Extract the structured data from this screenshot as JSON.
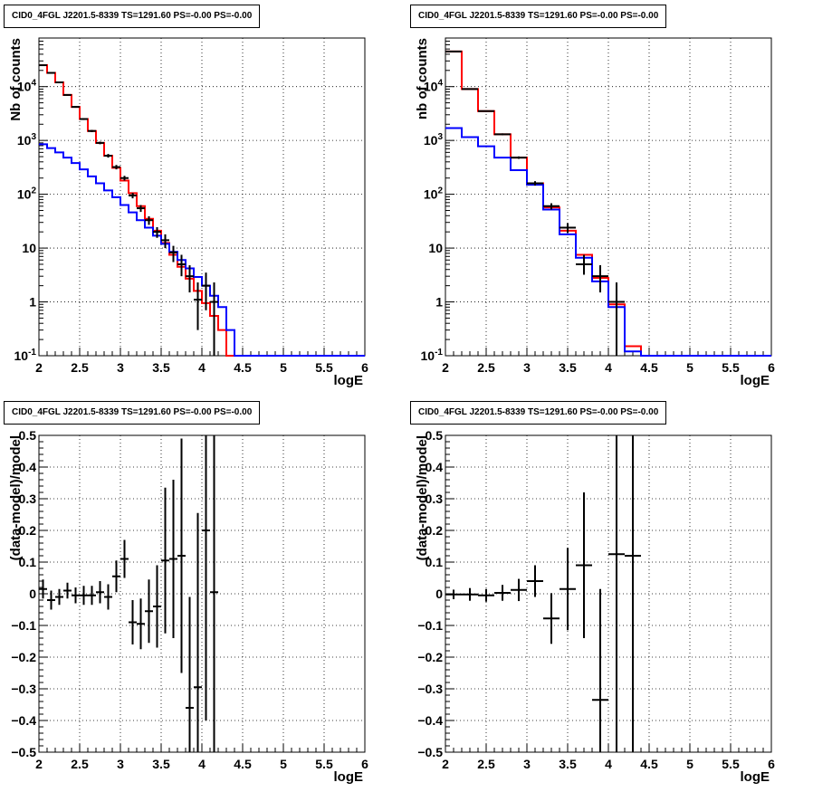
{
  "chart_data": [
    {
      "type": "line",
      "title": "CID0_4FGL J2201.5-8339 TS=1291.60 PS=-0.00 PS=-0.00",
      "xlabel": "logE",
      "ylabel": "Nb of counts",
      "xlim": [
        2,
        6
      ],
      "ylim": [
        0.1,
        80000
      ],
      "yscale": "log",
      "grid": true,
      "x_ticks": [
        "2",
        "2.5",
        "3",
        "3.5",
        "4",
        "4.5",
        "5",
        "5.5",
        "6"
      ],
      "y_ticks": [
        "10^-1",
        "1",
        "10",
        "10^2",
        "10^3",
        "10^4"
      ],
      "bin_edges": [
        2.0,
        2.1,
        2.2,
        2.3,
        2.4,
        2.5,
        2.6,
        2.7,
        2.8,
        2.9,
        3.0,
        3.1,
        3.2,
        3.3,
        3.4,
        3.5,
        3.6,
        3.7,
        3.8,
        3.9,
        4.0,
        4.1,
        4.2,
        4.3,
        4.4,
        4.5,
        4.6,
        4.7,
        4.8,
        4.9,
        5.0,
        5.1,
        5.2,
        5.3,
        5.4,
        5.5,
        5.6,
        5.7,
        5.8,
        5.9,
        6.0
      ],
      "series": [
        {
          "color": "#ff0000",
          "values": [
            25000,
            18000,
            12000,
            7000,
            4200,
            2500,
            1500,
            900,
            520,
            310,
            180,
            105,
            60,
            35,
            21,
            12.5,
            7.5,
            4.5,
            2.7,
            1.6,
            0.95,
            0.55,
            0.3,
            0.1,
            0.1,
            0.1,
            0.1,
            0.1,
            0.1,
            0.1,
            0.1,
            0.1,
            0.1,
            0.1,
            0.1,
            0.1,
            0.1,
            0.1,
            0.1,
            0.1
          ]
        },
        {
          "color": "#0000ff",
          "values": [
            850,
            720,
            600,
            480,
            380,
            290,
            215,
            160,
            118,
            88,
            63,
            46,
            33,
            24,
            17,
            12,
            8.5,
            6,
            4.2,
            2.9,
            2.0,
            1.3,
            0.8,
            0.3,
            0.1,
            0.1,
            0.1,
            0.1,
            0.1,
            0.1,
            0.1,
            0.1,
            0.1,
            0.1,
            0.1,
            0.1,
            0.1,
            0.1,
            0.1,
            0.1
          ]
        }
      ],
      "data_points": [
        {
          "x": 2.05,
          "y": 25000,
          "lo": 24500,
          "hi": 25500
        },
        {
          "x": 2.15,
          "y": 18000,
          "lo": 17600,
          "hi": 18400
        },
        {
          "x": 2.25,
          "y": 12000,
          "lo": 11700,
          "hi": 12300
        },
        {
          "x": 2.35,
          "y": 7000,
          "lo": 6800,
          "hi": 7200
        },
        {
          "x": 2.45,
          "y": 4200,
          "lo": 4050,
          "hi": 4350
        },
        {
          "x": 2.55,
          "y": 2500,
          "lo": 2400,
          "hi": 2600
        },
        {
          "x": 2.65,
          "y": 1500,
          "lo": 1430,
          "hi": 1570
        },
        {
          "x": 2.75,
          "y": 900,
          "lo": 850,
          "hi": 950
        },
        {
          "x": 2.85,
          "y": 520,
          "lo": 480,
          "hi": 560
        },
        {
          "x": 2.95,
          "y": 320,
          "lo": 290,
          "hi": 350
        },
        {
          "x": 3.05,
          "y": 200,
          "lo": 180,
          "hi": 220
        },
        {
          "x": 3.15,
          "y": 95,
          "lo": 84,
          "hi": 106
        },
        {
          "x": 3.25,
          "y": 55,
          "lo": 47,
          "hi": 63
        },
        {
          "x": 3.35,
          "y": 33,
          "lo": 27,
          "hi": 39
        },
        {
          "x": 3.45,
          "y": 20,
          "lo": 15.5,
          "hi": 24.5
        },
        {
          "x": 3.55,
          "y": 14,
          "lo": 10,
          "hi": 18
        },
        {
          "x": 3.65,
          "y": 8.3,
          "lo": 5.5,
          "hi": 11
        },
        {
          "x": 3.75,
          "y": 5,
          "lo": 3,
          "hi": 7.5
        },
        {
          "x": 3.85,
          "y": 3,
          "lo": 1.5,
          "hi": 4.8
        },
        {
          "x": 3.95,
          "y": 1.1,
          "lo": 0.3,
          "hi": 2.3
        },
        {
          "x": 4.05,
          "y": 2,
          "lo": 0.7,
          "hi": 3.5
        },
        {
          "x": 4.15,
          "y": 1,
          "lo": 0.1,
          "hi": 2.3
        }
      ]
    },
    {
      "type": "line",
      "title": "CID0_4FGL J2201.5-8339 TS=1291.60 PS=-0.00 PS=-0.00",
      "xlabel": "logE",
      "ylabel": "nb of counts",
      "xlim": [
        2,
        6
      ],
      "ylim": [
        0.1,
        80000
      ],
      "yscale": "log",
      "grid": true,
      "x_ticks": [
        "2",
        "2.5",
        "3",
        "3.5",
        "4",
        "4.5",
        "5",
        "5.5",
        "6"
      ],
      "y_ticks": [
        "10^-1",
        "1",
        "10",
        "10^2",
        "10^3",
        "10^4"
      ],
      "bin_edges": [
        2.0,
        2.2,
        2.4,
        2.6,
        2.8,
        3.0,
        3.2,
        3.4,
        3.6,
        3.8,
        4.0,
        4.2,
        4.4,
        4.6,
        4.8,
        5.0,
        5.2,
        5.4,
        5.6,
        5.8,
        6.0
      ],
      "series": [
        {
          "color": "#ff0000",
          "values": [
            45000,
            9000,
            3500,
            1300,
            480,
            160,
            57,
            21,
            7.5,
            2.8,
            0.9,
            0.15,
            0.1,
            0.1,
            0.1,
            0.1,
            0.1,
            0.1,
            0.1,
            0.1
          ]
        },
        {
          "color": "#0000ff",
          "values": [
            1700,
            1150,
            780,
            480,
            280,
            150,
            52,
            18,
            6.6,
            2.4,
            0.8,
            0.12,
            0.1,
            0.1,
            0.1,
            0.1,
            0.1,
            0.1,
            0.1,
            0.1
          ]
        }
      ],
      "data_points": [
        {
          "x": 2.1,
          "y": 45000,
          "lo": 44500,
          "hi": 45500
        },
        {
          "x": 2.3,
          "y": 9000,
          "lo": 8800,
          "hi": 9200
        },
        {
          "x": 2.5,
          "y": 3500,
          "lo": 3400,
          "hi": 3600
        },
        {
          "x": 2.7,
          "y": 1300,
          "lo": 1250,
          "hi": 1350
        },
        {
          "x": 2.9,
          "y": 480,
          "lo": 455,
          "hi": 505
        },
        {
          "x": 3.1,
          "y": 160,
          "lo": 145,
          "hi": 175
        },
        {
          "x": 3.3,
          "y": 60,
          "lo": 52,
          "hi": 68
        },
        {
          "x": 3.5,
          "y": 24,
          "lo": 19,
          "hi": 29
        },
        {
          "x": 3.7,
          "y": 5,
          "lo": 3.2,
          "hi": 7.5
        },
        {
          "x": 3.9,
          "y": 3,
          "lo": 1.5,
          "hi": 4.8
        },
        {
          "x": 4.1,
          "y": 1,
          "lo": 0.1,
          "hi": 2.3
        }
      ]
    },
    {
      "type": "scatter",
      "title": "CID0_4FGL J2201.5-8339 TS=1291.60 PS=-0.00 PS=-0.00",
      "xlabel": "logE",
      "ylabel": "(data-model)/model",
      "xlim": [
        2,
        6
      ],
      "ylim": [
        -0.5,
        0.5
      ],
      "grid": true,
      "x_ticks": [
        "2",
        "2.5",
        "3",
        "3.5",
        "4",
        "4.5",
        "5",
        "5.5",
        "6"
      ],
      "y_ticks": [
        "−0.5",
        "−0.4",
        "−0.3",
        "−0.2",
        "−0.1",
        "0",
        "0.1",
        "0.2",
        "0.3",
        "0.4",
        "0.5"
      ],
      "xhalf": 0.05,
      "points": [
        {
          "x": 2.05,
          "y": 0.015,
          "err": 0.03
        },
        {
          "x": 2.15,
          "y": -0.02,
          "err": 0.03
        },
        {
          "x": 2.25,
          "y": -0.01,
          "err": 0.025
        },
        {
          "x": 2.35,
          "y": 0.01,
          "err": 0.025
        },
        {
          "x": 2.45,
          "y": -0.005,
          "err": 0.025
        },
        {
          "x": 2.55,
          "y": -0.005,
          "err": 0.03
        },
        {
          "x": 2.65,
          "y": -0.005,
          "err": 0.03
        },
        {
          "x": 2.75,
          "y": 0.005,
          "err": 0.035
        },
        {
          "x": 2.85,
          "y": -0.01,
          "err": 0.04
        },
        {
          "x": 2.95,
          "y": 0.055,
          "err": 0.05
        },
        {
          "x": 3.05,
          "y": 0.11,
          "err": 0.06
        },
        {
          "x": 3.15,
          "y": -0.09,
          "err": 0.07
        },
        {
          "x": 3.25,
          "y": -0.095,
          "err": 0.08
        },
        {
          "x": 3.35,
          "y": -0.055,
          "err": 0.1
        },
        {
          "x": 3.45,
          "y": -0.04,
          "err": 0.13
        },
        {
          "x": 3.55,
          "y": 0.105,
          "err": 0.23
        },
        {
          "x": 3.65,
          "y": 0.11,
          "err": 0.25
        },
        {
          "x": 3.75,
          "y": 0.12,
          "err": 0.37
        },
        {
          "x": 3.85,
          "y": -0.36,
          "err": 0.35
        },
        {
          "x": 3.95,
          "y": -0.295,
          "err": 0.55
        },
        {
          "x": 4.05,
          "y": 0.2,
          "err": 0.6
        },
        {
          "x": 4.15,
          "y": 0.005,
          "err": 0.9
        }
      ]
    },
    {
      "type": "scatter",
      "title": "CID0_4FGL J2201.5-8339 TS=1291.60 PS=-0.00 PS=-0.00",
      "xlabel": "logE",
      "ylabel": "(data-model)/model",
      "xlim": [
        2,
        6
      ],
      "ylim": [
        -0.5,
        0.5
      ],
      "grid": true,
      "x_ticks": [
        "2",
        "2.5",
        "3",
        "3.5",
        "4",
        "4.5",
        "5",
        "5.5",
        "6"
      ],
      "y_ticks": [
        "−0.5",
        "−0.4",
        "−0.3",
        "−0.2",
        "−0.1",
        "0",
        "0.1",
        "0.2",
        "0.3",
        "0.4",
        "0.5"
      ],
      "xhalf": 0.1,
      "points": [
        {
          "x": 2.1,
          "y": -0.002,
          "err": 0.015
        },
        {
          "x": 2.3,
          "y": -0.002,
          "err": 0.02
        },
        {
          "x": 2.5,
          "y": -0.005,
          "err": 0.02
        },
        {
          "x": 2.7,
          "y": 0.003,
          "err": 0.025
        },
        {
          "x": 2.9,
          "y": 0.012,
          "err": 0.035
        },
        {
          "x": 3.1,
          "y": 0.04,
          "err": 0.05
        },
        {
          "x": 3.3,
          "y": -0.078,
          "err": 0.08
        },
        {
          "x": 3.5,
          "y": 0.015,
          "err": 0.13
        },
        {
          "x": 3.7,
          "y": 0.09,
          "err": 0.23
        },
        {
          "x": 3.9,
          "y": -0.335,
          "err": 0.35
        },
        {
          "x": 4.1,
          "y": 0.125,
          "err": 0.8
        },
        {
          "x": 4.3,
          "y": 0.12,
          "err": 0.9
        }
      ]
    }
  ]
}
